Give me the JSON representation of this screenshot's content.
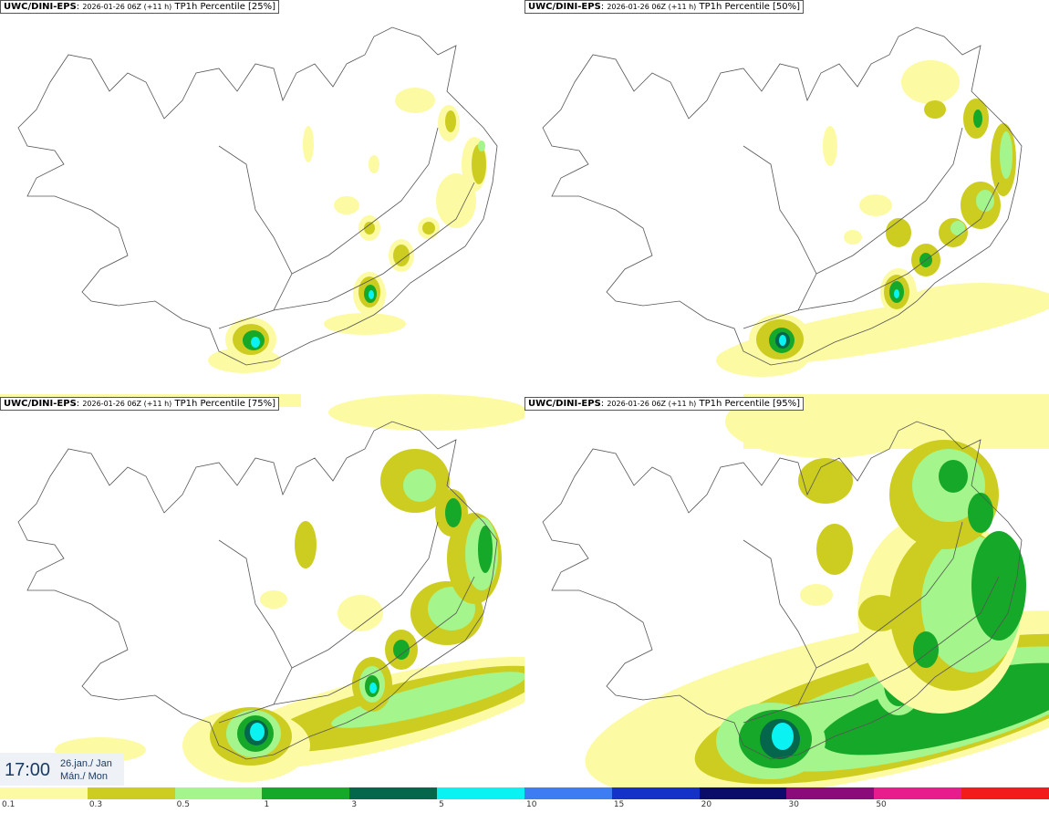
{
  "panels": [
    {
      "model": "UWC/DINI-EPS",
      "run": "2026-01-26 06Z (+11 h)",
      "field": "TP1h Percentile [25%]"
    },
    {
      "model": "UWC/DINI-EPS",
      "run": "2026-01-26 06Z (+11 h)",
      "field": "TP1h Percentile [50%]"
    },
    {
      "model": "UWC/DINI-EPS",
      "run": "2026-01-26 06Z (+11 h)",
      "field": "TP1h Percentile [75%]"
    },
    {
      "model": "UWC/DINI-EPS",
      "run": "2026-01-26 06Z (+11 h)",
      "field": "TP1h Percentile [95%]"
    }
  ],
  "sep": ": ",
  "timestamp": {
    "time": "17:00",
    "date_line1": "26.jan./ Jan",
    "date_line2": "Mán./ Mon"
  },
  "legend": {
    "labels": [
      "0.1",
      "0.3",
      "0.5",
      "1",
      "3",
      "5",
      "10",
      "15",
      "20",
      "30",
      "50"
    ],
    "colors": [
      "#fdfaa4",
      "#cdcd21",
      "#a4f58c",
      "#16a829",
      "#04664a",
      "#0bf2f2",
      "#3d7cf2",
      "#1432c8",
      "#0b0b6a",
      "#8c0b7a",
      "#e81c8c"
    ],
    "end_color": "#f21c1c"
  },
  "colors": {
    "c1": "#fdfaa4",
    "c2": "#cdcd21",
    "c3": "#a4f58c",
    "c4": "#16a829",
    "c5": "#04664a",
    "c6": "#0bf2f2"
  }
}
